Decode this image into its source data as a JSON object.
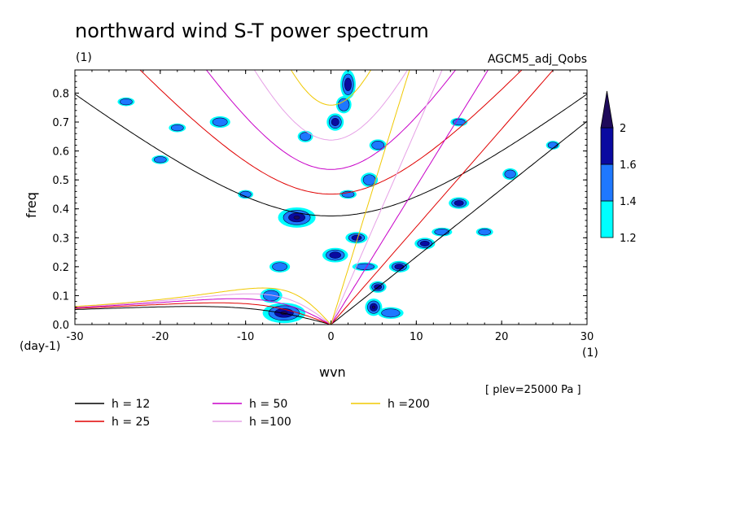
{
  "chart_data": {
    "type": "contour",
    "title": "northward wind S-T power spectrum",
    "subtitle_left": "(1)",
    "subtitle_right": "AGCM5_adj_Qobs",
    "xlabel": "wvn",
    "ylabel": "freq",
    "x_unit_label": "(1)",
    "y_unit_label": "(day-1)",
    "xlim": [
      -30,
      30
    ],
    "ylim": [
      0.0,
      0.88
    ],
    "xticks": [
      -30,
      -20,
      -10,
      0,
      10,
      20,
      30
    ],
    "xtick_labels": [
      "-30",
      "-20",
      "-10",
      "0",
      "10",
      "20",
      "30"
    ],
    "yticks": [
      0.0,
      0.1,
      0.2,
      0.3,
      0.4,
      0.5,
      0.6,
      0.7,
      0.8
    ],
    "ytick_labels": [
      "0.0",
      "0.1",
      "0.2",
      "0.3",
      "0.4",
      "0.5",
      "0.6",
      "0.7",
      "0.8"
    ],
    "plev_note": "[ plev=25000 Pa ]",
    "colorbar": {
      "levels": [
        1.2,
        1.4,
        1.6,
        2
      ],
      "labels": [
        "1.2",
        "1.4",
        "1.6",
        "2"
      ],
      "colors": [
        "#00ffff",
        "#1e78ff",
        "#0a0aa0",
        "#1e0a5a"
      ]
    },
    "dispersion_curves": [
      {
        "label": "h = 12",
        "h": 12,
        "color": "#000000"
      },
      {
        "label": "h = 25",
        "h": 25,
        "color": "#e00000"
      },
      {
        "label": "h = 50",
        "h": 50,
        "color": "#c800c8"
      },
      {
        "label": "h =100",
        "h": 100,
        "color": "#e6a0e6"
      },
      {
        "label": "h =200",
        "h": 200,
        "color": "#f0c800"
      }
    ],
    "blobs": [
      {
        "x": -4,
        "y": 0.37,
        "rx": 2.2,
        "ry": 0.035,
        "level": 3
      },
      {
        "x": -5.5,
        "y": 0.04,
        "rx": 2.5,
        "ry": 0.035,
        "level": 3
      },
      {
        "x": 5,
        "y": 0.06,
        "rx": 1.0,
        "ry": 0.03,
        "level": 3
      },
      {
        "x": 2,
        "y": 0.83,
        "rx": 0.9,
        "ry": 0.05,
        "level": 2
      },
      {
        "x": 0.5,
        "y": 0.7,
        "rx": 1.0,
        "ry": 0.03,
        "level": 2
      },
      {
        "x": 0.5,
        "y": 0.24,
        "rx": 1.5,
        "ry": 0.025,
        "level": 2
      },
      {
        "x": 3,
        "y": 0.3,
        "rx": 1.3,
        "ry": 0.02,
        "level": 2
      },
      {
        "x": 5.5,
        "y": 0.13,
        "rx": 1.0,
        "ry": 0.02,
        "level": 2
      },
      {
        "x": 8,
        "y": 0.2,
        "rx": 1.2,
        "ry": 0.02,
        "level": 2
      },
      {
        "x": 11,
        "y": 0.28,
        "rx": 1.2,
        "ry": 0.02,
        "level": 2
      },
      {
        "x": 15,
        "y": 0.42,
        "rx": 1.2,
        "ry": 0.02,
        "level": 2
      },
      {
        "x": -7,
        "y": 0.1,
        "rx": 1.3,
        "ry": 0.025,
        "level": 1
      },
      {
        "x": 4.5,
        "y": 0.5,
        "rx": 1.0,
        "ry": 0.025,
        "level": 1
      },
      {
        "x": 5.5,
        "y": 0.62,
        "rx": 1.0,
        "ry": 0.02,
        "level": 1
      },
      {
        "x": 13,
        "y": 0.32,
        "rx": 1.2,
        "ry": 0.015,
        "level": 1
      },
      {
        "x": -3,
        "y": 0.65,
        "rx": 0.9,
        "ry": 0.02,
        "level": 1
      },
      {
        "x": -13,
        "y": 0.7,
        "rx": 1.2,
        "ry": 0.02,
        "level": 1
      },
      {
        "x": 21,
        "y": 0.52,
        "rx": 0.9,
        "ry": 0.02,
        "level": 1
      },
      {
        "x": -6,
        "y": 0.2,
        "rx": 1.2,
        "ry": 0.02,
        "level": 1
      },
      {
        "x": 1.5,
        "y": 0.76,
        "rx": 0.9,
        "ry": 0.03,
        "level": 1
      },
      {
        "x": 4,
        "y": 0.2,
        "rx": 1.5,
        "ry": 0.015,
        "level": 1
      },
      {
        "x": 7,
        "y": 0.04,
        "rx": 1.5,
        "ry": 0.02,
        "level": 1
      },
      {
        "x": -20,
        "y": 0.57,
        "rx": 1.0,
        "ry": 0.015,
        "level": 1
      },
      {
        "x": 26,
        "y": 0.62,
        "rx": 0.8,
        "ry": 0.015,
        "level": 1
      },
      {
        "x": 15,
        "y": 0.7,
        "rx": 1.0,
        "ry": 0.015,
        "level": 1
      },
      {
        "x": -18,
        "y": 0.68,
        "rx": 1.0,
        "ry": 0.015,
        "level": 1
      },
      {
        "x": -10,
        "y": 0.45,
        "rx": 0.9,
        "ry": 0.015,
        "level": 1
      },
      {
        "x": 2,
        "y": 0.45,
        "rx": 1.0,
        "ry": 0.015,
        "level": 1
      },
      {
        "x": 18,
        "y": 0.32,
        "rx": 1.0,
        "ry": 0.015,
        "level": 1
      },
      {
        "x": -24,
        "y": 0.77,
        "rx": 1.0,
        "ry": 0.015,
        "level": 1
      }
    ]
  }
}
